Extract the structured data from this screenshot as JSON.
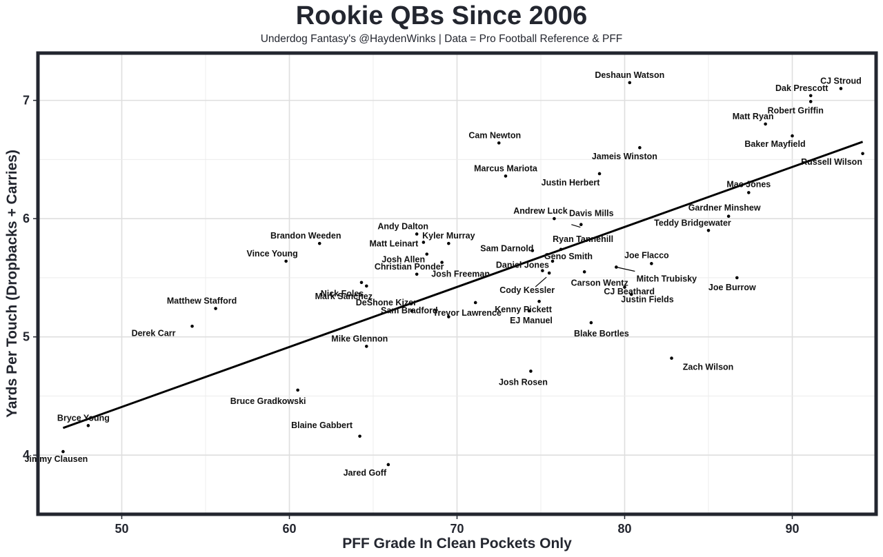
{
  "chart_data": {
    "type": "scatter",
    "title": "Rookie QBs Since 2006",
    "subtitle": "Underdog Fantasy's @HaydenWinks | Data = Pro Football Reference & PFF",
    "xlabel": "PFF Grade In Clean Pockets Only",
    "ylabel": "Yards Per Touch (Dropbacks + Carries)",
    "xlim": [
      45,
      95
    ],
    "ylim": [
      3.5,
      7.4
    ],
    "xticks": [
      50,
      60,
      70,
      80,
      90
    ],
    "xtick_labels": [
      "50",
      "60",
      "70",
      "80",
      "90"
    ],
    "yticks": [
      4,
      5,
      6,
      7
    ],
    "ytick_labels": [
      "4",
      "5",
      "6",
      "7"
    ],
    "grid": true,
    "trend_line": {
      "x": [
        46.5,
        94.2
      ],
      "y": [
        4.23,
        6.65
      ]
    },
    "points": [
      {
        "name": "Deshaun Watson",
        "x": 80.3,
        "y": 7.15
      },
      {
        "name": "CJ Stroud",
        "x": 92.9,
        "y": 7.1
      },
      {
        "name": "Dak Prescott",
        "x": 91.1,
        "y": 7.04
      },
      {
        "name": "Robert Griffin",
        "x": 91.1,
        "y": 6.99
      },
      {
        "name": "Matt Ryan",
        "x": 88.4,
        "y": 6.8
      },
      {
        "name": "Baker Mayfield",
        "x": 90.0,
        "y": 6.7
      },
      {
        "name": "Cam Newton",
        "x": 72.5,
        "y": 6.64
      },
      {
        "name": "Jameis Winston",
        "x": 80.9,
        "y": 6.6
      },
      {
        "name": "Russell Wilson",
        "x": 94.2,
        "y": 6.55
      },
      {
        "name": "Justin Herbert",
        "x": 78.5,
        "y": 6.38
      },
      {
        "name": "Marcus Mariota",
        "x": 72.9,
        "y": 6.36
      },
      {
        "name": "Mac Jones",
        "x": 87.4,
        "y": 6.22
      },
      {
        "name": "Gardner Minshew",
        "x": 86.2,
        "y": 6.02
      },
      {
        "name": "Andrew Luck",
        "x": 75.8,
        "y": 6.0
      },
      {
        "name": "Davis Mills",
        "x": 77.4,
        "y": 5.95
      },
      {
        "name": "Teddy Bridgewater",
        "x": 85.0,
        "y": 5.9
      },
      {
        "name": "Andy Dalton",
        "x": 67.6,
        "y": 5.87
      },
      {
        "name": "Matt Leinart",
        "x": 68.0,
        "y": 5.8
      },
      {
        "name": "Kyler Murray",
        "x": 69.5,
        "y": 5.79
      },
      {
        "name": "Brandon Weeden",
        "x": 61.8,
        "y": 5.79
      },
      {
        "name": "Ryan Tannehill",
        "x": 76.2,
        "y": 5.74
      },
      {
        "name": "Sam Darnold",
        "x": 74.5,
        "y": 5.73
      },
      {
        "name": "Josh Allen",
        "x": 68.2,
        "y": 5.7
      },
      {
        "name": "Geno Smith",
        "x": 75.7,
        "y": 5.64
      },
      {
        "name": "Vince Young",
        "x": 59.8,
        "y": 5.64
      },
      {
        "name": "Joe Flacco",
        "x": 81.6,
        "y": 5.62
      },
      {
        "name": "Josh Freeman",
        "x": 69.1,
        "y": 5.63
      },
      {
        "name": "Daniel Jones",
        "x": 75.1,
        "y": 5.56
      },
      {
        "name": "Mitch Trubisky",
        "x": 79.5,
        "y": 5.59
      },
      {
        "name": "Carson Wentz",
        "x": 77.6,
        "y": 5.55
      },
      {
        "name": "Cody Kessler",
        "x": 75.5,
        "y": 5.54
      },
      {
        "name": "Christian Ponder",
        "x": 67.6,
        "y": 5.53
      },
      {
        "name": "Joe Burrow",
        "x": 86.7,
        "y": 5.5
      },
      {
        "name": "Nick Foles",
        "x": 64.3,
        "y": 5.46
      },
      {
        "name": "Mark Sanchez",
        "x": 64.6,
        "y": 5.43
      },
      {
        "name": "Justin Fields",
        "x": 80.0,
        "y": 5.42
      },
      {
        "name": "CJ Beathard",
        "x": 80.4,
        "y": 5.36
      },
      {
        "name": "Trevor Lawrence",
        "x": 71.1,
        "y": 5.29
      },
      {
        "name": "Kenny Pickett",
        "x": 74.9,
        "y": 5.3
      },
      {
        "name": "Matthew Stafford",
        "x": 55.6,
        "y": 5.24
      },
      {
        "name": "DeShone Kizer",
        "x": 67.3,
        "y": 5.22
      },
      {
        "name": "EJ Manuel",
        "x": 74.3,
        "y": 5.22
      },
      {
        "name": "Sam Bradford",
        "x": 69.5,
        "y": 5.17
      },
      {
        "name": "Blake Bortles",
        "x": 78.0,
        "y": 5.12
      },
      {
        "name": "Derek Carr",
        "x": 54.2,
        "y": 5.09
      },
      {
        "name": "Mike Glennon",
        "x": 64.6,
        "y": 4.92
      },
      {
        "name": "Zach Wilson",
        "x": 82.8,
        "y": 4.82
      },
      {
        "name": "Josh Rosen",
        "x": 74.4,
        "y": 4.71
      },
      {
        "name": "Bruce Gradkowski",
        "x": 60.5,
        "y": 4.55
      },
      {
        "name": "Bryce Young",
        "x": 48.0,
        "y": 4.25
      },
      {
        "name": "Blaine Gabbert",
        "x": 64.2,
        "y": 4.16
      },
      {
        "name": "Jimmy Clausen",
        "x": 46.5,
        "y": 4.03
      },
      {
        "name": "Jared Goff",
        "x": 65.9,
        "y": 3.92
      }
    ]
  }
}
